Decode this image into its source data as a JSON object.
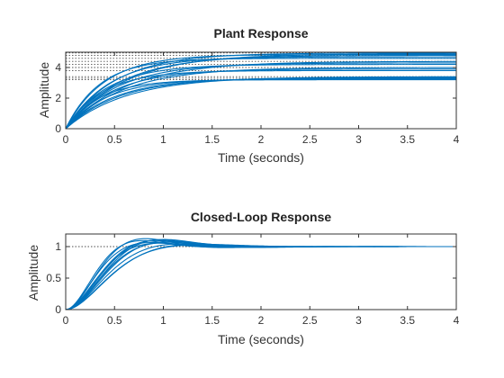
{
  "colors": {
    "line": "#0072BD",
    "axis": "#333333",
    "ref": "#4d4d4d"
  },
  "chart_data": [
    {
      "type": "line",
      "title": "Plant Response",
      "xlabel": "Time (seconds)",
      "ylabel": "Amplitude",
      "xlim": [
        0,
        4
      ],
      "ylim": [
        0,
        5
      ],
      "xticks": [
        "0",
        "0.5",
        "1",
        "1.5",
        "2",
        "2.5",
        "3",
        "3.5",
        "4"
      ],
      "yticks": [
        "0",
        "2",
        "4"
      ],
      "grid": false,
      "legend": "none",
      "series": [
        {
          "final": 3.2,
          "tau": 0.35
        },
        {
          "final": 3.25,
          "tau": 0.42
        },
        {
          "final": 3.3,
          "tau": 0.5
        },
        {
          "final": 3.35,
          "tau": 0.55
        },
        {
          "final": 3.4,
          "tau": 0.62
        },
        {
          "final": 3.8,
          "tau": 0.38
        },
        {
          "final": 3.9,
          "tau": 0.48
        },
        {
          "final": 4.0,
          "tau": 0.58
        },
        {
          "final": 4.2,
          "tau": 0.42
        },
        {
          "final": 4.3,
          "tau": 0.52
        },
        {
          "final": 4.4,
          "tau": 0.62
        },
        {
          "final": 4.6,
          "tau": 0.35
        },
        {
          "final": 4.7,
          "tau": 0.45
        },
        {
          "final": 4.8,
          "tau": 0.55
        },
        {
          "final": 4.85,
          "tau": 0.4
        },
        {
          "final": 4.9,
          "tau": 0.6
        },
        {
          "final": 4.95,
          "tau": 0.5
        }
      ],
      "reference_levels": [
        3.2,
        3.3,
        3.4,
        3.8,
        4.0,
        4.2,
        4.4,
        4.6,
        4.8,
        4.95
      ]
    },
    {
      "type": "line",
      "title": "Closed-Loop Response",
      "xlabel": "Time (seconds)",
      "ylabel": "Amplitude",
      "xlim": [
        0,
        4
      ],
      "ylim": [
        0,
        1.2
      ],
      "xticks": [
        "0",
        "0.5",
        "1",
        "1.5",
        "2",
        "2.5",
        "3",
        "3.5",
        "4"
      ],
      "yticks": [
        "0",
        "0.5",
        "1"
      ],
      "grid": false,
      "legend": "none",
      "series": [
        {
          "wn": 4.6,
          "zeta": 0.55
        },
        {
          "wn": 4.2,
          "zeta": 0.6
        },
        {
          "wn": 3.9,
          "zeta": 0.65
        },
        {
          "wn": 3.6,
          "zeta": 0.7
        },
        {
          "wn": 3.4,
          "zeta": 0.75
        },
        {
          "wn": 5.0,
          "zeta": 0.6
        },
        {
          "wn": 4.0,
          "zeta": 0.58
        },
        {
          "wn": 3.7,
          "zeta": 0.62
        },
        {
          "wn": 4.4,
          "zeta": 0.68
        },
        {
          "wn": 3.3,
          "zeta": 0.72
        },
        {
          "wn": 3.8,
          "zeta": 0.57
        },
        {
          "wn": 4.8,
          "zeta": 0.66
        }
      ],
      "reference_levels": [
        1.0
      ]
    }
  ]
}
